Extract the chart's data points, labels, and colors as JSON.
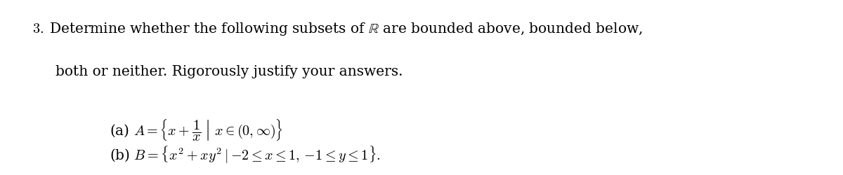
{
  "background_color": "#ffffff",
  "figsize": [
    12.0,
    2.51
  ],
  "dpi": 100,
  "line1": "3.\\;\\text{Determine whether the following subsets of }\\mathbb{R}\\text{ are bounded above, bounded below,}",
  "line2": "\\text{both or neither. Rigorously justify your answers.}",
  "part_a": "\\text{(a) }A = \\left\\{x + \\dfrac{1}{x}\\;\\middle|\\; x \\in (0, \\infty)\\right\\}",
  "part_b": "\\text{(b) }B = \\left\\{x^2 + xy^2 \\;\\middle|\\; {-2} \\leq x \\leq 1,\\, {-1} \\leq y \\leq 1\\right\\}\\text{.}"
}
